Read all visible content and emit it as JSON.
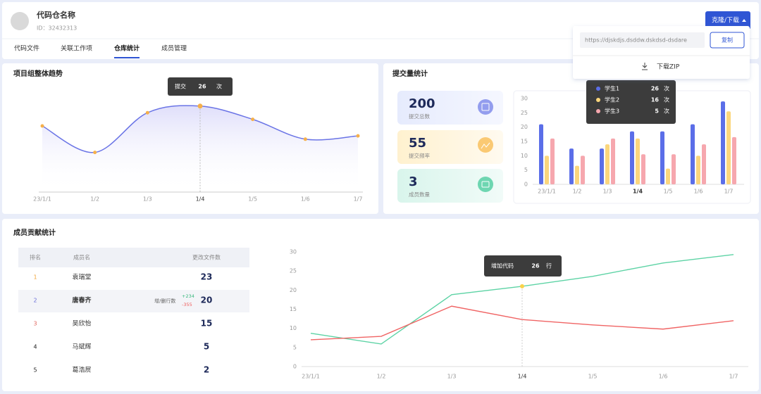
{
  "header": {
    "title": "代码仓名称",
    "id": "ID：32432313",
    "button": "克隆/下载"
  },
  "tabs": {
    "items": [
      "代码文件",
      "关联工作项",
      "仓库统计",
      "成员管理"
    ]
  },
  "clone_menu": {
    "url": "https://djskdjs.dsddw.dskdsd-dsdare",
    "copy": "复制",
    "download": "下载ZIP"
  },
  "stats": [
    {
      "value": 200,
      "label": "提交总数"
    },
    {
      "value": 55,
      "label": "提交频率"
    },
    {
      "value": 3,
      "label": "成员数量"
    }
  ],
  "members": {
    "title": "成员贡献统计",
    "columns": [
      "排名",
      "成员名",
      "更改文件数"
    ],
    "rows": [
      [
        1,
        "袁瑞堂",
        23
      ],
      [
        2,
        "唐春齐",
        20
      ],
      [
        3,
        "吴欣怡",
        15
      ],
      [
        4,
        "马斌辉",
        5
      ],
      [
        5,
        "葛浩屃",
        2
      ]
    ],
    "row_detail": {
      "label": "增/删行数",
      "added": "+234",
      "removed": "-355"
    }
  },
  "chart_data": [
    {
      "type": "line",
      "title": "项目组整体趋势",
      "categories": [
        "23/1/1",
        "1/2",
        "1/3",
        "1/4",
        "1/5",
        "1/6",
        "1/7"
      ],
      "values": [
        20,
        12,
        24,
        26,
        22,
        16,
        17
      ],
      "color": "#6a74e6",
      "point_color": "#f5b04b",
      "ylim": [
        0,
        30
      ],
      "tooltip": {
        "label": "提交",
        "unit": "次"
      }
    },
    {
      "type": "bar",
      "title": "提交量统计",
      "categories": [
        "23/1/1",
        "1/2",
        "1/3",
        "1/4",
        "1/5",
        "1/6",
        "1/7"
      ],
      "series": [
        {
          "name": "学生1",
          "color": "#5b6ee8",
          "values": [
            21,
            12.5,
            12.5,
            18.5,
            18.5,
            21,
            29
          ]
        },
        {
          "name": "学生2",
          "color": "#fbd67c",
          "values": [
            10,
            6.5,
            14,
            16,
            5.5,
            10,
            25.5
          ]
        },
        {
          "name": "学生3",
          "color": "#f6a7ae",
          "values": [
            16,
            10,
            16,
            10.5,
            10.5,
            14,
            16.5
          ]
        }
      ],
      "ylim": [
        0,
        30
      ],
      "yticks": [
        0,
        5,
        10,
        15,
        20,
        25,
        30
      ],
      "tooltip": {
        "values": [
          26,
          16,
          5
        ],
        "unit": "次"
      }
    },
    {
      "type": "line",
      "categories": [
        "23/1/1",
        "1/2",
        "1/3",
        "1/4",
        "1/5",
        "1/6",
        "1/7"
      ],
      "series": [
        {
          "color": "#5dd3a5",
          "values": [
            8.7,
            5.9,
            18.8,
            21,
            23.6,
            27.1,
            29.3
          ]
        },
        {
          "color": "#f06464",
          "values": [
            7,
            7.9,
            15.8,
            12.3,
            10.9,
            9.8,
            12
          ]
        }
      ],
      "ylim": [
        0,
        30
      ],
      "yticks": [
        0,
        5,
        10,
        15,
        20,
        25,
        30
      ],
      "tooltip": {
        "label": "增加代码",
        "value": 26,
        "unit": "行"
      }
    }
  ]
}
